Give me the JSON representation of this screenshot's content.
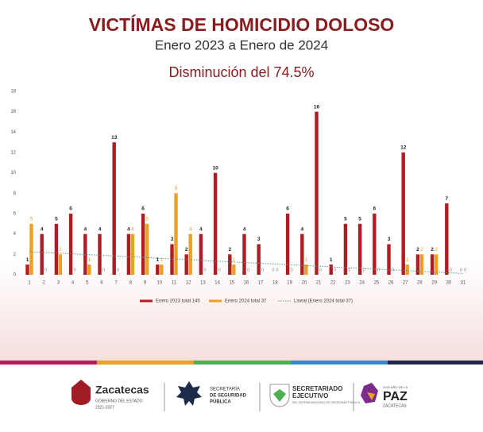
{
  "chart_data": {
    "type": "bar",
    "title": "VICTÍMAS DE HOMICIDIO DOLOSO",
    "subtitle": "Enero 2023 a Enero de 2024",
    "annotation": "Disminución del 74.5%",
    "categories": [
      "1",
      "2",
      "3",
      "4",
      "5",
      "6",
      "7",
      "8",
      "9",
      "10",
      "11",
      "12",
      "13",
      "14",
      "15",
      "16",
      "17",
      "18",
      "19",
      "20",
      "21",
      "22",
      "23",
      "24",
      "25",
      "26",
      "27",
      "28",
      "29",
      "30",
      "31"
    ],
    "series": [
      {
        "name": "Enero 2023 total 145",
        "color": "#b01c22",
        "values": [
          1,
          4,
          5,
          6,
          4,
          4,
          13,
          4,
          6,
          1,
          3,
          2,
          4,
          10,
          2,
          4,
          3,
          0,
          6,
          4,
          16,
          1,
          5,
          5,
          6,
          3,
          12,
          2,
          2,
          7,
          0
        ]
      },
      {
        "name": "Enero 2024 total 37",
        "color": "#f0a020",
        "values": [
          5,
          0,
          2,
          0,
          1,
          0,
          0,
          4,
          5,
          1,
          8,
          4,
          0,
          0,
          1,
          0,
          0,
          0,
          0,
          1,
          0,
          0,
          0,
          0,
          0,
          0,
          1,
          2,
          2,
          0,
          0
        ]
      }
    ],
    "trendline": {
      "name": "Lineal (Enero 2024 total 37)",
      "color": "#5a9a8a"
    },
    "ylim": [
      0,
      18
    ],
    "yticks": [
      0,
      2,
      4,
      6,
      8,
      10,
      12,
      14,
      16,
      18
    ],
    "grid": false
  },
  "footer": {
    "logo1": {
      "name": "Zacatecas",
      "line1": "GOBIERNO DEL ESTADO",
      "line2": "2021-2027"
    },
    "logo2": {
      "line1": "SECRETARÍA",
      "line2": "DE SEGURIDAD",
      "line3": "PÚBLICA"
    },
    "logo3": {
      "line1": "SECRETARIADO",
      "line2": "EJECUTIVO",
      "line3": "DEL SISTEMA NACIONAL DE SEGURIDAD PÚBLICA"
    },
    "logo4": {
      "top": "2024 AÑO DE LA",
      "name": "PAZ",
      "bottom": "ZACATECAS"
    }
  }
}
